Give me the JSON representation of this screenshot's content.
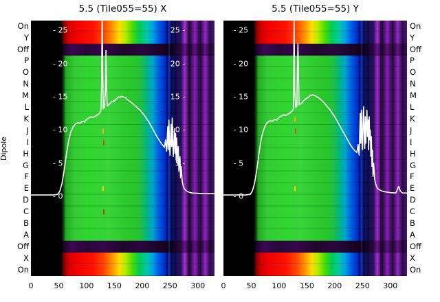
{
  "figure": {
    "background": "#ffffff",
    "y_axis_label": "Dipole",
    "dipole_labels": [
      "On",
      "Y",
      "Off",
      "P",
      "O",
      "N",
      "M",
      "L",
      "K",
      "J",
      "I",
      "H",
      "G",
      "F",
      "E",
      "D",
      "C",
      "B",
      "A",
      "Off",
      "X",
      "On"
    ],
    "row_styles": {
      "On": "hot",
      "Y": "hot",
      "X": "hot",
      "Off": "off",
      "default": "mid"
    },
    "colors": {
      "line": "#ffffff",
      "tick_text": "#ffffff",
      "label_text": "#000000",
      "plot_background": "#000000"
    }
  },
  "palette": {
    "hot": [
      [
        0,
        "#000000"
      ],
      [
        16.5,
        "#000000"
      ],
      [
        17.8,
        "#7f0000"
      ],
      [
        20,
        "#c80000"
      ],
      [
        24,
        "#ee0000"
      ],
      [
        34,
        "#ff1200"
      ],
      [
        40,
        "#ff4a00"
      ],
      [
        44.5,
        "#ff9500"
      ],
      [
        48,
        "#ffdc00"
      ],
      [
        51.5,
        "#b4ec00"
      ],
      [
        55,
        "#52dc00"
      ],
      [
        59,
        "#00cc52"
      ],
      [
        63,
        "#00c8a6"
      ],
      [
        66.5,
        "#009ee6"
      ],
      [
        70,
        "#0056e6"
      ],
      [
        73.5,
        "#0027bf"
      ],
      [
        76,
        "#121c8c"
      ],
      [
        79,
        "#170f5a"
      ],
      [
        81.8,
        "#2a1160"
      ],
      [
        83.8,
        "#ab2fd5"
      ],
      [
        86.3,
        "#1e0834"
      ],
      [
        89.3,
        "#8b22bc"
      ],
      [
        92.3,
        "#270a40"
      ],
      [
        95,
        "#9429c9"
      ],
      [
        97.5,
        "#2c0c46"
      ],
      [
        100,
        "#471870"
      ]
    ],
    "mid": [
      [
        0,
        "#000000"
      ],
      [
        16.5,
        "#000000"
      ],
      [
        17.6,
        "#0a3a0a"
      ],
      [
        19,
        "#23ab23"
      ],
      [
        24,
        "#33cc33"
      ],
      [
        32,
        "#30d430"
      ],
      [
        42,
        "#38d438"
      ],
      [
        50,
        "#2ecb2e"
      ],
      [
        56,
        "#28c628"
      ],
      [
        60,
        "#1fbf46"
      ],
      [
        63,
        "#00b67e"
      ],
      [
        66.5,
        "#00a0d2"
      ],
      [
        70,
        "#0058e2"
      ],
      [
        73.5,
        "#0029c2"
      ],
      [
        76,
        "#101a8a"
      ],
      [
        79,
        "#140f55"
      ],
      [
        81.8,
        "#281058"
      ],
      [
        83.8,
        "#a22cd0"
      ],
      [
        86.3,
        "#1c0830"
      ],
      [
        89.3,
        "#8520b5"
      ],
      [
        92.3,
        "#250a3e"
      ],
      [
        95,
        "#8f26c2"
      ],
      [
        97.5,
        "#2a0b42"
      ],
      [
        100,
        "#431668"
      ]
    ],
    "off": [
      [
        0,
        "#000000"
      ],
      [
        16.5,
        "#000000"
      ],
      [
        18,
        "#1d0429"
      ],
      [
        22,
        "#3a0852"
      ],
      [
        30,
        "#2a063c"
      ],
      [
        40,
        "#34074b"
      ],
      [
        50,
        "#21052f"
      ],
      [
        60,
        "#2a063e"
      ],
      [
        70,
        "#1c0428"
      ],
      [
        76,
        "#150218"
      ],
      [
        81.8,
        "#2a0840"
      ],
      [
        83.8,
        "#6b1493"
      ],
      [
        86.3,
        "#160424"
      ],
      [
        89.3,
        "#5d1281"
      ],
      [
        92.3,
        "#1c0628"
      ],
      [
        95,
        "#671489"
      ],
      [
        97.5,
        "#1e0630"
      ],
      [
        100,
        "#341151"
      ]
    ],
    "overlay": [
      [
        0,
        "rgba(0,0,0,0)"
      ],
      [
        73.6,
        "rgba(0,0,0,0)"
      ],
      [
        73.9,
        "rgba(0,0,25,0.55)"
      ],
      [
        74.4,
        "rgba(0,0,25,0.55)"
      ],
      [
        74.7,
        "rgba(0,0,0,0)"
      ],
      [
        75.1,
        "rgba(40,90,255,0.30)"
      ],
      [
        75.5,
        "rgba(40,90,255,0.30)"
      ],
      [
        75.8,
        "rgba(0,0,0,0)"
      ],
      [
        76.4,
        "rgba(0,0,20,0.55)"
      ],
      [
        77.0,
        "rgba(0,0,20,0.55)"
      ],
      [
        77.4,
        "rgba(0,0,0,0)"
      ],
      [
        78.3,
        "rgba(5,5,45,0.5)"
      ],
      [
        79.0,
        "rgba(5,5,45,0.5)"
      ],
      [
        79.5,
        "rgba(0,0,0,0)"
      ],
      [
        85.3,
        "rgba(0,0,0,0)"
      ],
      [
        85.6,
        "rgba(0,0,0,0.35)"
      ],
      [
        85.9,
        "rgba(0,0,0,0)"
      ],
      [
        91.0,
        "rgba(0,0,0,0)"
      ],
      [
        91.3,
        "rgba(0,0,0,0.3)"
      ],
      [
        91.6,
        "rgba(0,0,0,0)"
      ],
      [
        100,
        "rgba(0,0,0,0)"
      ]
    ]
  },
  "panels": [
    {
      "left_ticks_x_pct": 12,
      "right_ticks": {
        "x_pct": 66,
        "width_pct": 18,
        "values": [
          25,
          20,
          15,
          10,
          5
        ]
      },
      "markers": [
        {
          "x": 130,
          "row_index": 9,
          "color": "#ffaa00"
        },
        {
          "x": 131,
          "row_index": 10,
          "color": "#cc5500"
        },
        {
          "x": 130,
          "row_index": 14,
          "color": "#ffcc00"
        },
        {
          "x": 131,
          "row_index": 16,
          "color": "#bb4400"
        }
      ]
    },
    {
      "left_ticks_x_pct": 5.5,
      "right_ticks": null,
      "markers": [
        {
          "x": 129,
          "row_index": 8,
          "color": "#ffaa00"
        },
        {
          "x": 130,
          "row_index": 9,
          "color": "#cc5500"
        },
        {
          "x": 129,
          "row_index": 14,
          "color": "#ffcc00"
        }
      ]
    }
  ],
  "chart_data": [
    {
      "type": "heatmap",
      "title": "5.5 (Tile055=55) X",
      "x_range": [
        0,
        330
      ],
      "x_ticks": [
        0,
        50,
        100,
        150,
        200,
        250,
        300
      ],
      "db_axis": {
        "ticks": [
          25,
          20,
          15,
          10,
          5,
          0
        ],
        "range": [
          -12,
          26.5
        ]
      },
      "rows": [
        "On",
        "Y",
        "Off",
        "P",
        "O",
        "N",
        "M",
        "L",
        "K",
        "J",
        "I",
        "H",
        "G",
        "F",
        "E",
        "D",
        "C",
        "B",
        "A",
        "Off",
        "X",
        "On"
      ],
      "line": {
        "name": "power-spectrum-db",
        "points": [
          [
            0,
            0.2
          ],
          [
            40,
            0.2
          ],
          [
            48,
            0.3
          ],
          [
            52,
            0.8
          ],
          [
            56,
            2
          ],
          [
            60,
            4
          ],
          [
            64,
            6.5
          ],
          [
            68,
            8.5
          ],
          [
            72,
            9.8
          ],
          [
            76,
            10.5
          ],
          [
            80,
            10.9
          ],
          [
            84,
            11.1
          ],
          [
            88,
            11.0
          ],
          [
            92,
            11.3
          ],
          [
            96,
            11.2
          ],
          [
            100,
            11.6
          ],
          [
            104,
            11.8
          ],
          [
            108,
            12.0
          ],
          [
            112,
            11.9
          ],
          [
            116,
            12.1
          ],
          [
            120,
            12.3
          ],
          [
            124,
            12.6
          ],
          [
            126,
            13.0
          ],
          [
            127,
            17.0
          ],
          [
            128,
            28.0
          ],
          [
            129,
            18.0
          ],
          [
            130,
            13.2
          ],
          [
            132,
            13.4
          ],
          [
            134,
            16.0
          ],
          [
            135,
            22.0
          ],
          [
            136,
            17.0
          ],
          [
            137,
            13.6
          ],
          [
            140,
            13.8
          ],
          [
            144,
            14.2
          ],
          [
            148,
            14.4
          ],
          [
            150,
            14.3
          ],
          [
            152,
            14.6
          ],
          [
            155,
            14.8
          ],
          [
            158,
            15.0
          ],
          [
            160,
            14.9
          ],
          [
            163,
            15.1
          ],
          [
            166,
            15.0
          ],
          [
            170,
            14.9
          ],
          [
            173,
            14.6
          ],
          [
            176,
            14.4
          ],
          [
            180,
            14.2
          ],
          [
            184,
            13.9
          ],
          [
            188,
            13.6
          ],
          [
            192,
            13.3
          ],
          [
            196,
            13.0
          ],
          [
            200,
            12.6
          ],
          [
            204,
            12.2
          ],
          [
            208,
            11.7
          ],
          [
            212,
            11.2
          ],
          [
            216,
            10.6
          ],
          [
            220,
            10.0
          ],
          [
            224,
            9.4
          ],
          [
            228,
            8.8
          ],
          [
            232,
            8.3
          ],
          [
            236,
            7.8
          ],
          [
            240,
            7.4
          ],
          [
            242,
            8.5
          ],
          [
            244,
            6.8
          ],
          [
            246,
            10.5
          ],
          [
            247,
            7.0
          ],
          [
            248,
            11.5
          ],
          [
            249,
            8.0
          ],
          [
            250,
            6.2
          ],
          [
            252,
            10.8
          ],
          [
            253,
            7.5
          ],
          [
            254,
            11.8
          ],
          [
            255,
            8.0
          ],
          [
            256,
            6.0
          ],
          [
            258,
            10.2
          ],
          [
            259,
            6.5
          ],
          [
            260,
            9.5
          ],
          [
            261,
            5.5
          ],
          [
            262,
            8.8
          ],
          [
            264,
            4.8
          ],
          [
            265,
            7.5
          ],
          [
            266,
            3.8
          ],
          [
            268,
            6.0
          ],
          [
            269,
            2.8
          ],
          [
            270,
            4.5
          ],
          [
            272,
            2.2
          ],
          [
            274,
            1.5
          ],
          [
            276,
            1.1
          ],
          [
            280,
            0.8
          ],
          [
            285,
            0.6
          ],
          [
            290,
            0.5
          ],
          [
            300,
            0.45
          ],
          [
            310,
            0.4
          ],
          [
            330,
            0.4
          ]
        ]
      }
    },
    {
      "type": "heatmap",
      "title": "5.5 (Tile055=55) Y",
      "x_range": [
        0,
        330
      ],
      "x_ticks": [
        0,
        50,
        100,
        150,
        200,
        250,
        300
      ],
      "db_axis": {
        "ticks": [
          25,
          20,
          15,
          10,
          5,
          0
        ],
        "range": [
          -12,
          26.5
        ]
      },
      "rows": [
        "On",
        "Y",
        "Off",
        "P",
        "O",
        "N",
        "M",
        "L",
        "K",
        "J",
        "I",
        "H",
        "G",
        "F",
        "E",
        "D",
        "C",
        "B",
        "A",
        "Off",
        "X",
        "On"
      ],
      "line": {
        "name": "power-spectrum-db",
        "points": [
          [
            0,
            0.2
          ],
          [
            40,
            0.2
          ],
          [
            48,
            0.3
          ],
          [
            52,
            0.8
          ],
          [
            56,
            2.0
          ],
          [
            60,
            4.0
          ],
          [
            64,
            6.5
          ],
          [
            68,
            8.7
          ],
          [
            72,
            10.0
          ],
          [
            76,
            10.8
          ],
          [
            80,
            11.2
          ],
          [
            84,
            11.4
          ],
          [
            88,
            11.3
          ],
          [
            92,
            11.6
          ],
          [
            96,
            11.5
          ],
          [
            100,
            11.9
          ],
          [
            104,
            12.1
          ],
          [
            108,
            12.3
          ],
          [
            112,
            12.2
          ],
          [
            116,
            12.4
          ],
          [
            120,
            12.6
          ],
          [
            124,
            12.9
          ],
          [
            126,
            13.3
          ],
          [
            127,
            27.0
          ],
          [
            128,
            16.0
          ],
          [
            130,
            13.4
          ],
          [
            132,
            13.6
          ],
          [
            133,
            19.0
          ],
          [
            134,
            23.0
          ],
          [
            135,
            18.0
          ],
          [
            136,
            13.8
          ],
          [
            140,
            14.0
          ],
          [
            144,
            14.4
          ],
          [
            148,
            14.7
          ],
          [
            152,
            14.9
          ],
          [
            156,
            15.2
          ],
          [
            160,
            15.3
          ],
          [
            164,
            15.2
          ],
          [
            168,
            15.0
          ],
          [
            172,
            14.8
          ],
          [
            176,
            14.5
          ],
          [
            180,
            14.2
          ],
          [
            184,
            13.8
          ],
          [
            188,
            13.4
          ],
          [
            192,
            13.0
          ],
          [
            196,
            12.5
          ],
          [
            200,
            12.0
          ],
          [
            204,
            11.4
          ],
          [
            208,
            10.8
          ],
          [
            212,
            10.2
          ],
          [
            216,
            9.6
          ],
          [
            220,
            9.0
          ],
          [
            224,
            8.4
          ],
          [
            228,
            7.8
          ],
          [
            232,
            7.3
          ],
          [
            236,
            6.9
          ],
          [
            240,
            6.6
          ],
          [
            242,
            7.8
          ],
          [
            244,
            6.2
          ],
          [
            245,
            9.5
          ],
          [
            246,
            12.5
          ],
          [
            247,
            8.0
          ],
          [
            248,
            13.0
          ],
          [
            249,
            9.0
          ],
          [
            250,
            7.0
          ],
          [
            251,
            11.0
          ],
          [
            252,
            13.5
          ],
          [
            253,
            9.5
          ],
          [
            254,
            7.2
          ],
          [
            255,
            12.0
          ],
          [
            256,
            8.0
          ],
          [
            257,
            10.5
          ],
          [
            258,
            13.0
          ],
          [
            259,
            9.0
          ],
          [
            260,
            11.5
          ],
          [
            261,
            7.0
          ],
          [
            262,
            12.0
          ],
          [
            263,
            8.5
          ],
          [
            264,
            10.0
          ],
          [
            265,
            6.0
          ],
          [
            266,
            9.0
          ],
          [
            267,
            4.5
          ],
          [
            268,
            7.0
          ],
          [
            269,
            3.0
          ],
          [
            270,
            5.0
          ],
          [
            272,
            2.5
          ],
          [
            274,
            1.8
          ],
          [
            276,
            1.3
          ],
          [
            280,
            1.0
          ],
          [
            285,
            0.8
          ],
          [
            290,
            0.7
          ],
          [
            300,
            0.55
          ],
          [
            310,
            0.5
          ],
          [
            315,
            1.5
          ],
          [
            318,
            0.8
          ],
          [
            322,
            0.5
          ],
          [
            330,
            0.5
          ]
        ]
      }
    }
  ]
}
